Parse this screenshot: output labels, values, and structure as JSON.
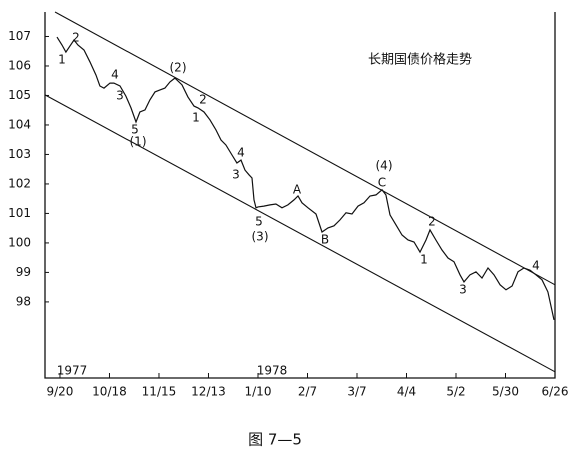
{
  "chart_data": {
    "type": "line",
    "title": "长期国债价格走势",
    "caption": "图 7—5",
    "year_labels": [
      "1977",
      "1978"
    ],
    "x": [
      -0.24,
      0.16,
      0.48,
      0.81,
      1.13,
      1.45,
      1.94,
      2.42,
      2.91,
      3.23,
      3.56,
      4.04,
      4.36,
      4.85,
      5.33,
      5.74,
      6.14,
      6.46,
      6.87,
      7.27,
      7.68,
      8.08,
      8.48,
      8.89,
      9.29,
      9.86,
      10.34,
      10.83,
      11.15,
      11.64,
      12.12,
      12.61,
      13.01,
      13.41,
      13.9,
      14.3,
      14.63,
      14.95,
      15.27,
      15.52,
      15.68,
      15.84,
      16.0,
      16.48,
      16.97,
      17.45,
      17.94,
      18.42,
      18.91,
      19.23,
      19.56,
      20.04,
      20.69,
      21.17,
      21.66,
      22.14,
      22.63,
      23.11,
      23.6,
      24.08,
      24.57,
      25.05,
      25.54,
      26.02,
      26.34,
      26.67,
      27.15,
      27.64,
      28.12,
      28.61,
      29.09,
      29.58,
      29.9,
      30.38,
      30.87,
      31.35,
      31.84,
      32.32,
      32.65,
      33.13,
      33.62,
      34.1,
      34.59,
      35.07,
      35.56,
      36.04,
      36.53,
      37.01,
      37.49,
      37.98,
      38.46,
      38.95,
      39.43,
      39.92
    ],
    "values": [
      106.98,
      106.71,
      106.47,
      106.68,
      106.88,
      106.71,
      106.54,
      106.14,
      105.69,
      105.32,
      105.25,
      105.42,
      105.42,
      105.32,
      104.98,
      104.58,
      104.1,
      104.44,
      104.51,
      104.85,
      105.12,
      105.19,
      105.25,
      105.46,
      105.59,
      105.36,
      104.95,
      104.64,
      104.58,
      104.44,
      104.17,
      103.83,
      103.49,
      103.32,
      102.98,
      102.71,
      102.81,
      102.47,
      102.31,
      102.2,
      101.46,
      101.19,
      101.22,
      101.25,
      101.29,
      101.32,
      101.19,
      101.29,
      101.46,
      101.59,
      101.36,
      101.19,
      100.98,
      100.37,
      100.51,
      100.58,
      100.78,
      101.02,
      100.98,
      101.25,
      101.36,
      101.59,
      101.63,
      101.8,
      101.63,
      100.95,
      100.61,
      100.27,
      100.1,
      100.03,
      99.69,
      100.1,
      100.44,
      100.1,
      99.76,
      99.49,
      99.36,
      98.92,
      98.68,
      98.92,
      99.02,
      98.81,
      99.15,
      98.92,
      98.58,
      98.41,
      98.54,
      99.02,
      99.15,
      99.08,
      98.92,
      98.75,
      98.34,
      97.39
    ],
    "color": "#111111",
    "trend_lines": [
      {
        "x": [
          -0.4,
          40
        ],
        "y": [
          107.83,
          98.58
        ]
      },
      {
        "x": [
          -1.21,
          40
        ],
        "y": [
          105.02,
          95.63
        ]
      }
    ],
    "annotations": [
      "1",
      "2",
      "4",
      "3",
      "5",
      "(1)",
      "(2)",
      "2",
      "1",
      "4",
      "3",
      "5",
      "(3)",
      "A",
      "B",
      "(4)",
      "C",
      "2",
      "1",
      "3",
      "4"
    ],
    "xlim": [
      -1.21,
      40
    ],
    "xticks": [
      {
        "value": 0,
        "label": "9/20"
      },
      {
        "value": 4,
        "label": "10/18"
      },
      {
        "value": 8,
        "label": "11/15"
      },
      {
        "value": 12,
        "label": "12/13"
      },
      {
        "value": 16,
        "label": "1/10"
      },
      {
        "value": 20,
        "label": "2/7"
      },
      {
        "value": 24,
        "label": "3/7"
      },
      {
        "value": 28,
        "label": "4/4"
      },
      {
        "value": 32,
        "label": "5/2"
      },
      {
        "value": 36,
        "label": "5/30"
      },
      {
        "value": 40,
        "label": "6/26"
      }
    ],
    "ylim": [
      95.42,
      107.83
    ],
    "yticks": [
      98,
      99,
      100,
      101,
      102,
      103,
      104,
      105,
      106,
      107
    ]
  }
}
